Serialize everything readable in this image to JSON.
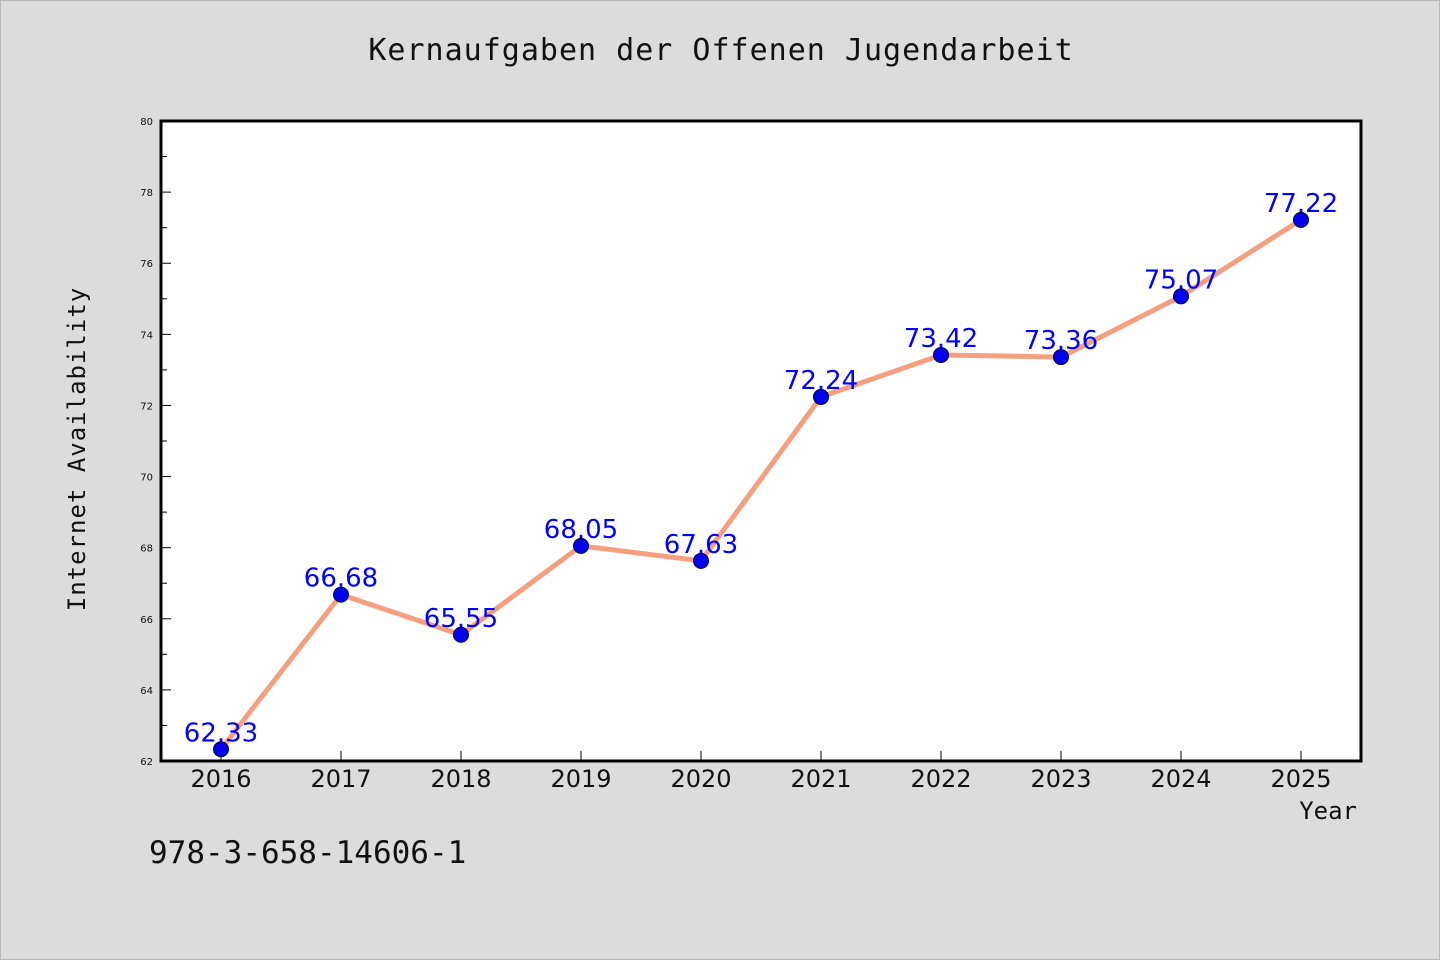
{
  "chart_data": {
    "type": "line",
    "title": "Kernaufgaben der Offenen Jugendarbeit",
    "xlabel": "Year",
    "ylabel": "Internet Availability",
    "categories": [
      "2016",
      "2017",
      "2018",
      "2019",
      "2020",
      "2021",
      "2022",
      "2023",
      "2024",
      "2025"
    ],
    "values": [
      62.33,
      66.68,
      65.55,
      68.05,
      67.63,
      72.24,
      73.42,
      73.36,
      75.07,
      77.22
    ],
    "data_labels": [
      "62.33",
      "66.68",
      "65.55",
      "68.05",
      "67.63",
      "72.24",
      "73.42",
      "73.36",
      "75.07",
      "77.22"
    ],
    "ylim": [
      62,
      80
    ],
    "yticks": [
      "62",
      "64",
      "66",
      "68",
      "70",
      "72",
      "74",
      "76",
      "78",
      "80"
    ],
    "grid": false,
    "line_color": "#f4a07f",
    "marker_color": "#0000ee",
    "label_color": "#0000ff"
  },
  "footer": {
    "identifier": "978-3-658-14606-1"
  }
}
